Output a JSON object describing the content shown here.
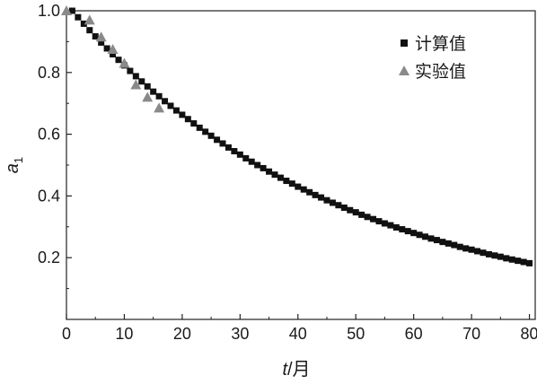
{
  "chart_data": {
    "type": "scatter",
    "xlabel": {
      "var": "t",
      "unit": "/月"
    },
    "ylabel": {
      "var": "a",
      "sub": "1"
    },
    "xlim": [
      0,
      81
    ],
    "ylim": [
      0,
      1.0
    ],
    "x_ticks": [
      0,
      10,
      20,
      30,
      40,
      50,
      60,
      70,
      80
    ],
    "y_ticks": [
      0.2,
      0.4,
      0.6,
      0.8,
      1.0
    ],
    "x_tick_labels": [
      "0",
      "10",
      "20",
      "30",
      "40",
      "50",
      "60",
      "70",
      "80"
    ],
    "y_tick_labels": [
      "0.2",
      "0.4",
      "0.6",
      "0.8",
      "1.0"
    ],
    "legend": {
      "position": "top-right"
    },
    "grid": false,
    "series": [
      {
        "name": "计算值",
        "marker": "square",
        "color": "#111111",
        "x": [
          1,
          2,
          3,
          4,
          5,
          6,
          7,
          8,
          9,
          10,
          11,
          12,
          13,
          14,
          15,
          16,
          17,
          18,
          19,
          20,
          21,
          22,
          23,
          24,
          25,
          26,
          27,
          28,
          29,
          30,
          31,
          32,
          33,
          34,
          35,
          36,
          37,
          38,
          39,
          40,
          41,
          42,
          43,
          44,
          45,
          46,
          47,
          48,
          49,
          50,
          51,
          52,
          53,
          54,
          55,
          56,
          57,
          58,
          59,
          60,
          61,
          62,
          63,
          64,
          65,
          66,
          67,
          68,
          69,
          70,
          71,
          72,
          73,
          74,
          75,
          76,
          77,
          78,
          79,
          80
        ],
        "y": [
          1.0,
          0.979,
          0.958,
          0.937,
          0.917,
          0.897,
          0.878,
          0.859,
          0.841,
          0.823,
          0.805,
          0.788,
          0.771,
          0.755,
          0.738,
          0.723,
          0.707,
          0.692,
          0.677,
          0.663,
          0.649,
          0.635,
          0.621,
          0.608,
          0.595,
          0.582,
          0.57,
          0.557,
          0.545,
          0.534,
          0.522,
          0.511,
          0.5,
          0.49,
          0.479,
          0.469,
          0.459,
          0.449,
          0.44,
          0.43,
          0.421,
          0.412,
          0.403,
          0.395,
          0.386,
          0.378,
          0.37,
          0.362,
          0.354,
          0.347,
          0.339,
          0.332,
          0.325,
          0.318,
          0.311,
          0.305,
          0.298,
          0.292,
          0.286,
          0.28,
          0.274,
          0.268,
          0.262,
          0.257,
          0.251,
          0.246,
          0.241,
          0.235,
          0.23,
          0.226,
          0.221,
          0.216,
          0.211,
          0.207,
          0.203,
          0.198,
          0.194,
          0.19,
          0.186,
          0.182
        ]
      },
      {
        "name": "实验值",
        "marker": "triangle",
        "color": "#8a8a8a",
        "x": [
          0,
          4,
          6,
          8,
          10,
          12,
          14,
          16
        ],
        "y": [
          1.0,
          0.97,
          0.915,
          0.875,
          0.83,
          0.76,
          0.72,
          0.685
        ]
      }
    ]
  }
}
